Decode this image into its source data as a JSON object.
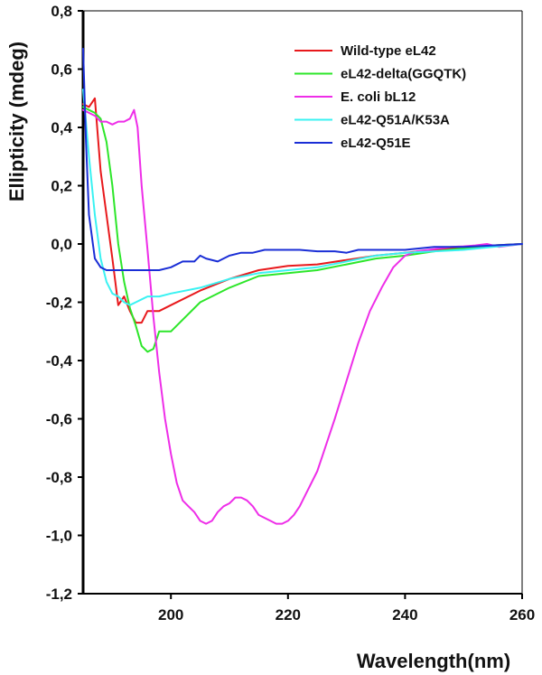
{
  "chart_data": {
    "type": "line",
    "xlabel": "Wavelength(nm)",
    "ylabel": "Ellipticity (mdeg)",
    "xlim": [
      185,
      260
    ],
    "ylim": [
      -1.2,
      0.8
    ],
    "xticks": [
      200,
      220,
      240,
      260
    ],
    "xtick_labels": [
      "200",
      "220",
      "240",
      "260"
    ],
    "yticks": [
      0.8,
      0.6,
      0.4,
      0.2,
      0.0,
      -0.2,
      -0.4,
      -0.6,
      -0.8,
      -1.0,
      -1.2
    ],
    "ytick_labels": [
      "0,8",
      "0,6",
      "0,4",
      "0,2",
      "0,0",
      "-0,2",
      "-0,4",
      "-0,6",
      "-0,8",
      "-1,0",
      "-1,2"
    ],
    "grid": false,
    "legend_position": "top-right",
    "series": [
      {
        "name": "Wild-type eL42",
        "color": "#e8191c",
        "x": [
          185,
          186,
          187,
          188,
          189,
          190,
          191,
          192,
          193,
          194,
          195,
          196,
          197,
          198,
          200,
          205,
          210,
          215,
          220,
          225,
          230,
          235,
          240,
          245,
          250,
          255,
          260
        ],
        "y": [
          0.48,
          0.47,
          0.5,
          0.25,
          0.1,
          -0.05,
          -0.21,
          -0.18,
          -0.23,
          -0.27,
          -0.27,
          -0.23,
          -0.23,
          -0.23,
          -0.21,
          -0.16,
          -0.12,
          -0.09,
          -0.075,
          -0.07,
          -0.055,
          -0.04,
          -0.03,
          -0.02,
          -0.012,
          -0.005,
          0.0
        ]
      },
      {
        "name": "eL42-delta(GGQTK)",
        "color": "#2de62a",
        "x": [
          185,
          186,
          187,
          188,
          189,
          190,
          191,
          192,
          193,
          194,
          195,
          196,
          197,
          198,
          199,
          200,
          205,
          210,
          215,
          220,
          225,
          230,
          235,
          240,
          245,
          250,
          255,
          260
        ],
        "y": [
          0.47,
          0.46,
          0.45,
          0.43,
          0.35,
          0.2,
          0.0,
          -0.13,
          -0.22,
          -0.28,
          -0.35,
          -0.37,
          -0.36,
          -0.3,
          -0.3,
          -0.3,
          -0.2,
          -0.15,
          -0.11,
          -0.1,
          -0.09,
          -0.07,
          -0.05,
          -0.04,
          -0.025,
          -0.015,
          -0.005,
          0.0
        ]
      },
      {
        "name": "E. coli bL12",
        "color": "#ee2ee8",
        "x": [
          185,
          186,
          187,
          188,
          189,
          190,
          191,
          192,
          193,
          193.7,
          194.3,
          195,
          196,
          197,
          198,
          199,
          200,
          201,
          202,
          203,
          204,
          205,
          206,
          207,
          208,
          209,
          210,
          211,
          212,
          213,
          214,
          215,
          216,
          217,
          218,
          219,
          220,
          221,
          222,
          223,
          224,
          225,
          226,
          228,
          230,
          232,
          234,
          236,
          238,
          240,
          242,
          244,
          246,
          248,
          250,
          252,
          254,
          256,
          258,
          260
        ],
        "y": [
          0.46,
          0.45,
          0.44,
          0.42,
          0.42,
          0.41,
          0.42,
          0.42,
          0.43,
          0.46,
          0.4,
          0.2,
          -0.02,
          -0.25,
          -0.44,
          -0.6,
          -0.72,
          -0.82,
          -0.88,
          -0.9,
          -0.92,
          -0.95,
          -0.96,
          -0.95,
          -0.92,
          -0.9,
          -0.89,
          -0.87,
          -0.87,
          -0.88,
          -0.9,
          -0.93,
          -0.94,
          -0.95,
          -0.96,
          -0.96,
          -0.95,
          -0.93,
          -0.9,
          -0.86,
          -0.82,
          -0.78,
          -0.72,
          -0.6,
          -0.47,
          -0.34,
          -0.23,
          -0.15,
          -0.08,
          -0.04,
          -0.025,
          -0.02,
          -0.015,
          -0.01,
          -0.008,
          -0.005,
          0.0,
          -0.01,
          -0.005,
          0.0
        ]
      },
      {
        "name": "eL42-Q51A/K53A",
        "color": "#3af2f2",
        "x": [
          185,
          186,
          187,
          188,
          189,
          190,
          191,
          192,
          193,
          194,
          195,
          196,
          197,
          198,
          200,
          205,
          210,
          215,
          220,
          225,
          230,
          235,
          240,
          245,
          250,
          255,
          260
        ],
        "y": [
          0.53,
          0.3,
          0.1,
          -0.05,
          -0.13,
          -0.17,
          -0.18,
          -0.2,
          -0.21,
          -0.2,
          -0.19,
          -0.18,
          -0.18,
          -0.18,
          -0.17,
          -0.15,
          -0.12,
          -0.1,
          -0.09,
          -0.08,
          -0.06,
          -0.04,
          -0.03,
          -0.025,
          -0.02,
          -0.01,
          0.0
        ]
      },
      {
        "name": "eL42-Q51E",
        "color": "#1a2ed6",
        "x": [
          185,
          185.5,
          186,
          187,
          188,
          189,
          190,
          192,
          194,
          196,
          198,
          200,
          202,
          204,
          205,
          206,
          208,
          210,
          212,
          214,
          216,
          218,
          220,
          222,
          225,
          228,
          230,
          232,
          235,
          240,
          245,
          250,
          255,
          260
        ],
        "y": [
          0.67,
          0.35,
          0.1,
          -0.05,
          -0.08,
          -0.09,
          -0.09,
          -0.09,
          -0.09,
          -0.09,
          -0.09,
          -0.08,
          -0.06,
          -0.06,
          -0.04,
          -0.05,
          -0.06,
          -0.04,
          -0.03,
          -0.03,
          -0.02,
          -0.02,
          -0.02,
          -0.02,
          -0.025,
          -0.025,
          -0.03,
          -0.02,
          -0.02,
          -0.02,
          -0.01,
          -0.01,
          -0.005,
          0.0
        ]
      }
    ]
  }
}
